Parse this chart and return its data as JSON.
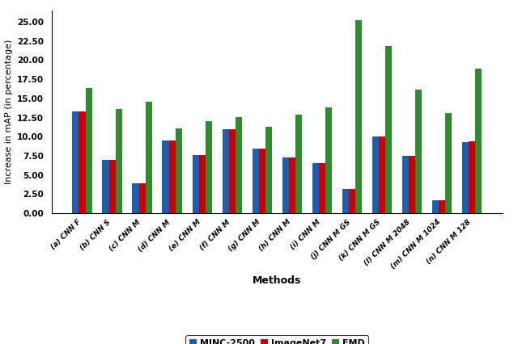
{
  "categories": [
    "(a) CNN F",
    "(b) CNN S",
    "(c) CNN M",
    "(d) CNN M",
    "(e) CNN M",
    "(f) CNN M",
    "(g) CNN M",
    "(h) CNN M",
    "(i) CNN M",
    "(j) CNN M GS",
    "(k) CNN M GS",
    "(l) CNN M 2048",
    "(m) CNN M 1024",
    "(n) CNN M 128"
  ],
  "MINC2500": [
    13.3,
    7.0,
    3.9,
    9.5,
    7.6,
    11.0,
    8.4,
    7.3,
    6.5,
    3.2,
    10.0,
    7.5,
    1.7,
    9.3
  ],
  "ImageNet7": [
    13.3,
    7.0,
    3.9,
    9.5,
    7.6,
    11.0,
    8.4,
    7.3,
    6.5,
    3.2,
    10.0,
    7.5,
    1.7,
    9.4
  ],
  "FMD": [
    16.4,
    13.6,
    14.6,
    11.1,
    12.0,
    12.6,
    11.3,
    12.9,
    13.8,
    25.2,
    21.8,
    16.1,
    13.1,
    18.9
  ],
  "bar_colors": [
    "#1a5fb4",
    "#cc0000",
    "#2e8b2e"
  ],
  "ylabel": "Increase in mAP (in percentage)",
  "xlabel": "Methods",
  "ylim": [
    0,
    26.5
  ],
  "yticks": [
    0.0,
    2.5,
    5.0,
    7.5,
    10.0,
    12.5,
    15.0,
    17.5,
    20.0,
    22.5,
    25.0
  ],
  "ytick_labels": [
    "0.00",
    "2.50",
    "5.00",
    "7.50",
    "10.00",
    "12.50",
    "15.00",
    "17.50",
    "20.00",
    "22.50",
    "25.00"
  ],
  "legend_labels": [
    "MINC-2500",
    "ImageNet7",
    "FMD"
  ],
  "background_color": "#ffffff"
}
